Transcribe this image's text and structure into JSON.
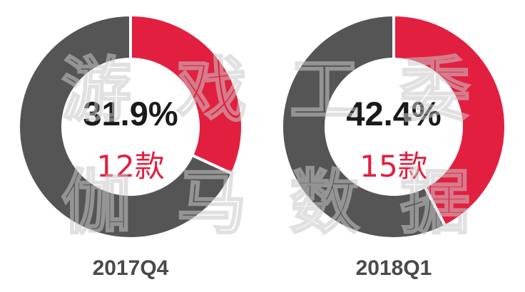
{
  "watermark": "游戏工委伽马数据",
  "colors": {
    "highlight": "#e21f3f",
    "rest": "#555555",
    "separator": "#ffffff"
  },
  "chart_data": [
    {
      "type": "pie",
      "variant": "donut",
      "period": "2017Q4",
      "slices": [
        {
          "value": 31.9,
          "label": "31.9%",
          "color": "#e21f3f"
        },
        {
          "value": 68.1,
          "color": "#555555"
        }
      ],
      "center_value": "31.9%",
      "center_count": "12款"
    },
    {
      "type": "pie",
      "variant": "donut",
      "period": "2018Q1",
      "slices": [
        {
          "value": 42.4,
          "label": "42.4%",
          "color": "#e21f3f"
        },
        {
          "value": 57.6,
          "color": "#555555"
        }
      ],
      "center_value": "42.4%",
      "center_count": "15款"
    }
  ]
}
